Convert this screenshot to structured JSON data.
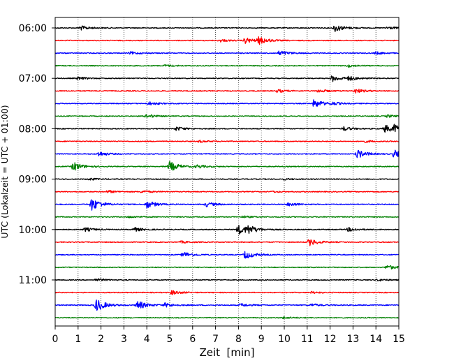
{
  "chart_data": {
    "type": "line",
    "title": "",
    "xlabel": "Zeit  [min]",
    "ylabel": "UTC (Lokalzeit = UTC + 01:00)",
    "xlim": [
      0,
      15
    ],
    "x_ticks": [
      0,
      1,
      2,
      3,
      4,
      5,
      6,
      7,
      8,
      9,
      10,
      11,
      12,
      13,
      14,
      15
    ],
    "grid": "vertical-dotted",
    "legend": "none",
    "y_tick_labels": [
      "06:00",
      "07:00",
      "08:00",
      "09:00",
      "10:00",
      "11:00"
    ],
    "trace_colors": [
      "#000000",
      "#ff0000",
      "#0000ff",
      "#008000"
    ],
    "traces": [
      {
        "hour": "06:00",
        "color": "#000000",
        "events": [
          [
            1.1,
            0.35
          ],
          [
            12.2,
            0.6
          ],
          [
            14.5,
            0.2
          ]
        ]
      },
      {
        "hour": "06:15",
        "color": "#ff0000",
        "events": [
          [
            7.2,
            0.2
          ],
          [
            8.3,
            0.45
          ],
          [
            8.9,
            0.55
          ]
        ]
      },
      {
        "hour": "06:30",
        "color": "#0000ff",
        "events": [
          [
            3.3,
            0.2
          ],
          [
            9.8,
            0.4
          ],
          [
            14.0,
            0.2
          ]
        ]
      },
      {
        "hour": "06:45",
        "color": "#008000",
        "events": [
          [
            4.8,
            0.15
          ],
          [
            12.8,
            0.2
          ]
        ]
      },
      {
        "hour": "07:00",
        "color": "#000000",
        "events": [
          [
            1.0,
            0.2
          ],
          [
            12.1,
            0.5
          ],
          [
            12.8,
            0.3
          ]
        ]
      },
      {
        "hour": "07:15",
        "color": "#ff0000",
        "events": [
          [
            9.7,
            0.25
          ],
          [
            11.5,
            0.25
          ],
          [
            13.1,
            0.35
          ]
        ]
      },
      {
        "hour": "07:30",
        "color": "#0000ff",
        "events": [
          [
            4.1,
            0.25
          ],
          [
            11.3,
            0.65
          ],
          [
            12.1,
            0.2
          ]
        ]
      },
      {
        "hour": "07:45",
        "color": "#008000",
        "events": [
          [
            4.0,
            0.3
          ],
          [
            14.5,
            0.2
          ]
        ]
      },
      {
        "hour": "08:00",
        "color": "#000000",
        "events": [
          [
            5.3,
            0.3
          ],
          [
            12.6,
            0.3
          ],
          [
            14.4,
            0.6
          ],
          [
            14.8,
            0.5
          ]
        ]
      },
      {
        "hour": "08:15",
        "color": "#ff0000",
        "events": [
          [
            6.3,
            0.15
          ],
          [
            13.5,
            0.15
          ]
        ]
      },
      {
        "hour": "08:30",
        "color": "#0000ff",
        "events": [
          [
            1.9,
            0.35
          ],
          [
            13.2,
            0.65
          ],
          [
            14.8,
            0.6
          ]
        ]
      },
      {
        "hour": "08:45",
        "color": "#008000",
        "events": [
          [
            0.8,
            0.7
          ],
          [
            5.0,
            0.8
          ],
          [
            6.2,
            0.25
          ]
        ]
      },
      {
        "hour": "09:00",
        "color": "#000000",
        "events": [
          [
            1.5,
            0.15
          ],
          [
            10.0,
            0.1
          ]
        ]
      },
      {
        "hour": "09:15",
        "color": "#ff0000",
        "events": [
          [
            2.3,
            0.2
          ],
          [
            3.8,
            0.2
          ],
          [
            9.5,
            0.1
          ]
        ]
      },
      {
        "hour": "09:30",
        "color": "#0000ff",
        "events": [
          [
            1.6,
            1.0
          ],
          [
            4.0,
            0.6
          ],
          [
            6.6,
            0.35
          ],
          [
            10.2,
            0.3
          ]
        ]
      },
      {
        "hour": "09:45",
        "color": "#008000",
        "events": [
          [
            3.2,
            0.15
          ],
          [
            8.2,
            0.15
          ]
        ]
      },
      {
        "hour": "10:00",
        "color": "#000000",
        "events": [
          [
            1.3,
            0.3
          ],
          [
            3.4,
            0.35
          ],
          [
            8.0,
            0.75
          ],
          [
            8.4,
            0.6
          ],
          [
            12.8,
            0.3
          ]
        ]
      },
      {
        "hour": "10:15",
        "color": "#ff0000",
        "events": [
          [
            5.5,
            0.15
          ],
          [
            11.1,
            0.55
          ]
        ]
      },
      {
        "hour": "10:30",
        "color": "#0000ff",
        "events": [
          [
            5.6,
            0.45
          ],
          [
            8.3,
            0.65
          ]
        ]
      },
      {
        "hour": "10:45",
        "color": "#008000",
        "events": [
          [
            14.5,
            0.35
          ]
        ]
      },
      {
        "hour": "11:00",
        "color": "#000000",
        "events": [
          [
            1.8,
            0.2
          ],
          [
            14.1,
            0.15
          ]
        ]
      },
      {
        "hour": "11:15",
        "color": "#ff0000",
        "events": [
          [
            5.1,
            0.35
          ],
          [
            11.2,
            0.15
          ]
        ]
      },
      {
        "hour": "11:30",
        "color": "#0000ff",
        "events": [
          [
            1.8,
            1.0
          ],
          [
            3.6,
            0.7
          ],
          [
            4.8,
            0.3
          ],
          [
            8.1,
            0.25
          ],
          [
            11.2,
            0.2
          ]
        ]
      },
      {
        "hour": "11:45",
        "color": "#008000",
        "events": [
          [
            10.0,
            0.15
          ]
        ]
      }
    ]
  }
}
